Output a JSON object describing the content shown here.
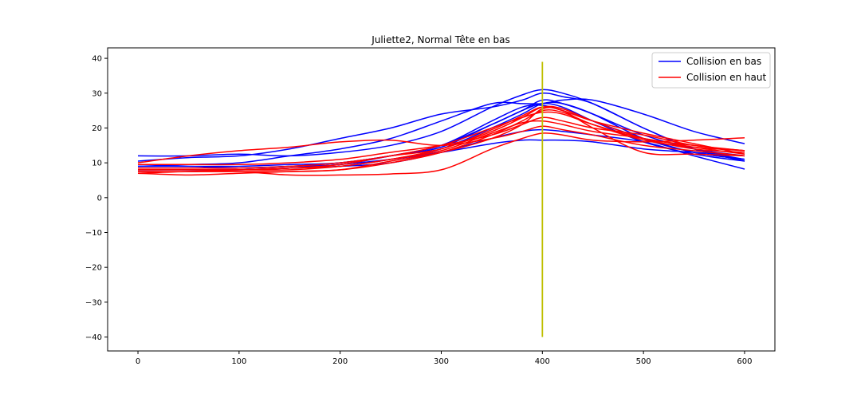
{
  "chart_data": {
    "type": "line",
    "title": "Juliette2, Normal Tête en bas",
    "xlabel": "",
    "ylabel": "",
    "xlim": [
      -30,
      630
    ],
    "ylim": [
      -44,
      43
    ],
    "xticks": [
      0,
      100,
      200,
      300,
      400,
      500,
      600
    ],
    "yticks": [
      -40,
      -30,
      -20,
      -10,
      0,
      10,
      20,
      30,
      40
    ],
    "xtick_labels": [
      "0",
      "100",
      "200",
      "300",
      "400",
      "500",
      "600"
    ],
    "ytick_labels": [
      "−40",
      "−30",
      "−20",
      "−10",
      "0",
      "10",
      "20",
      "30",
      "40"
    ],
    "grid": false,
    "legend": {
      "position": "top-right",
      "entries": [
        {
          "label": "Collision en bas",
          "color": "#0000ff"
        },
        {
          "label": "Collision en haut",
          "color": "#ff0000"
        }
      ]
    },
    "vline": {
      "x": 400,
      "ymin": -40,
      "ymax": 39,
      "color": "#bfbf00"
    },
    "x": [
      0,
      50,
      100,
      150,
      200,
      250,
      300,
      350,
      380,
      400,
      420,
      450,
      500,
      550,
      600
    ],
    "series": [
      {
        "group": "Collision en bas",
        "color": "#0000ff",
        "values": [
          12,
          12,
          12.5,
          12,
          13,
          15,
          19,
          26,
          29.5,
          31,
          30,
          27,
          20,
          14,
          10.5
        ]
      },
      {
        "group": "Collision en bas",
        "color": "#0000ff",
        "values": [
          10.5,
          11.5,
          12,
          14,
          17,
          20,
          24,
          26,
          28,
          30,
          29,
          27,
          20,
          14,
          11
        ]
      },
      {
        "group": "Collision en bas",
        "color": "#0000ff",
        "values": [
          9,
          9.5,
          10,
          12,
          14,
          17,
          22,
          27,
          27,
          27,
          28,
          28,
          24,
          19,
          15.5
        ]
      },
      {
        "group": "Collision en bas",
        "color": "#0000ff",
        "values": [
          9,
          9,
          8.5,
          9,
          10,
          12,
          15,
          22,
          26,
          26.5,
          25,
          22,
          17,
          13,
          11
        ]
      },
      {
        "group": "Collision en bas",
        "color": "#0000ff",
        "values": [
          8.5,
          8.5,
          8.5,
          9,
          9.5,
          12,
          15,
          21,
          25,
          27,
          26,
          22,
          16,
          12.5,
          10.5
        ]
      },
      {
        "group": "Collision en bas",
        "color": "#0000ff",
        "values": [
          8,
          8,
          8,
          8.5,
          9,
          11,
          14,
          20,
          24,
          27,
          27,
          24,
          17,
          13,
          11
        ]
      },
      {
        "group": "Collision en bas",
        "color": "#0000ff",
        "values": [
          7.5,
          7.5,
          8,
          8.5,
          9,
          10,
          13,
          17,
          19,
          19.5,
          19,
          18,
          16,
          12,
          8.2
        ]
      },
      {
        "group": "Collision en bas",
        "color": "#0000ff",
        "values": [
          8,
          8,
          8,
          8.5,
          9.5,
          11,
          13,
          15.5,
          16.5,
          16.5,
          16.5,
          16,
          14,
          13,
          12
        ]
      },
      {
        "group": "Collision en bas",
        "color": "#0000ff",
        "values": [
          9,
          9,
          9,
          9.5,
          10,
          12,
          14.5,
          21,
          25,
          28,
          27,
          24,
          18,
          14,
          12
        ]
      },
      {
        "group": "Collision en haut",
        "color": "#ff0000",
        "values": [
          10,
          12,
          13.5,
          14.5,
          16,
          16.5,
          15,
          17,
          19,
          20.5,
          19.5,
          18,
          15,
          13.5,
          12
        ]
      },
      {
        "group": "Collision en haut",
        "color": "#ff0000",
        "values": [
          8,
          8,
          8,
          8,
          9,
          11,
          14,
          19,
          23,
          26,
          25.5,
          22,
          17,
          14,
          13
        ]
      },
      {
        "group": "Collision en haut",
        "color": "#ff0000",
        "values": [
          7,
          6.5,
          7,
          7.5,
          8,
          10,
          13,
          18,
          22,
          25,
          24.5,
          21,
          16.5,
          14.5,
          13.5
        ]
      },
      {
        "group": "Collision en haut",
        "color": "#ff0000",
        "values": [
          7.5,
          7.5,
          7.5,
          7.5,
          8,
          10.5,
          13,
          17,
          21,
          25.5,
          25,
          20,
          13,
          12.5,
          12
        ]
      },
      {
        "group": "Collision en haut",
        "color": "#ff0000",
        "values": [
          7,
          7.5,
          7.5,
          6.5,
          6.5,
          6.8,
          8,
          14,
          17,
          18.5,
          18,
          16.5,
          16,
          16.5,
          17.2
        ]
      },
      {
        "group": "Collision en haut",
        "color": "#ff0000",
        "values": [
          9.5,
          9.5,
          9.5,
          10,
          11,
          13,
          15,
          18,
          21,
          23,
          22,
          20,
          18,
          15,
          13.5
        ]
      },
      {
        "group": "Collision en haut",
        "color": "#ff0000",
        "values": [
          8.5,
          8.5,
          8.5,
          9,
          10,
          12,
          15,
          20,
          23,
          24.5,
          24,
          21,
          17,
          15,
          13.5
        ]
      },
      {
        "group": "Collision en haut",
        "color": "#ff0000",
        "values": [
          8,
          8,
          8,
          8.5,
          9.5,
          12,
          14,
          19.5,
          23.5,
          26,
          25,
          22,
          18.5,
          15.5,
          12.5
        ]
      },
      {
        "group": "Collision en haut",
        "color": "#ff0000",
        "values": [
          7.5,
          7.5,
          8,
          8.5,
          9,
          11,
          13.5,
          18.5,
          21.5,
          22,
          21,
          19,
          17,
          14.5,
          12.5
        ]
      }
    ]
  }
}
